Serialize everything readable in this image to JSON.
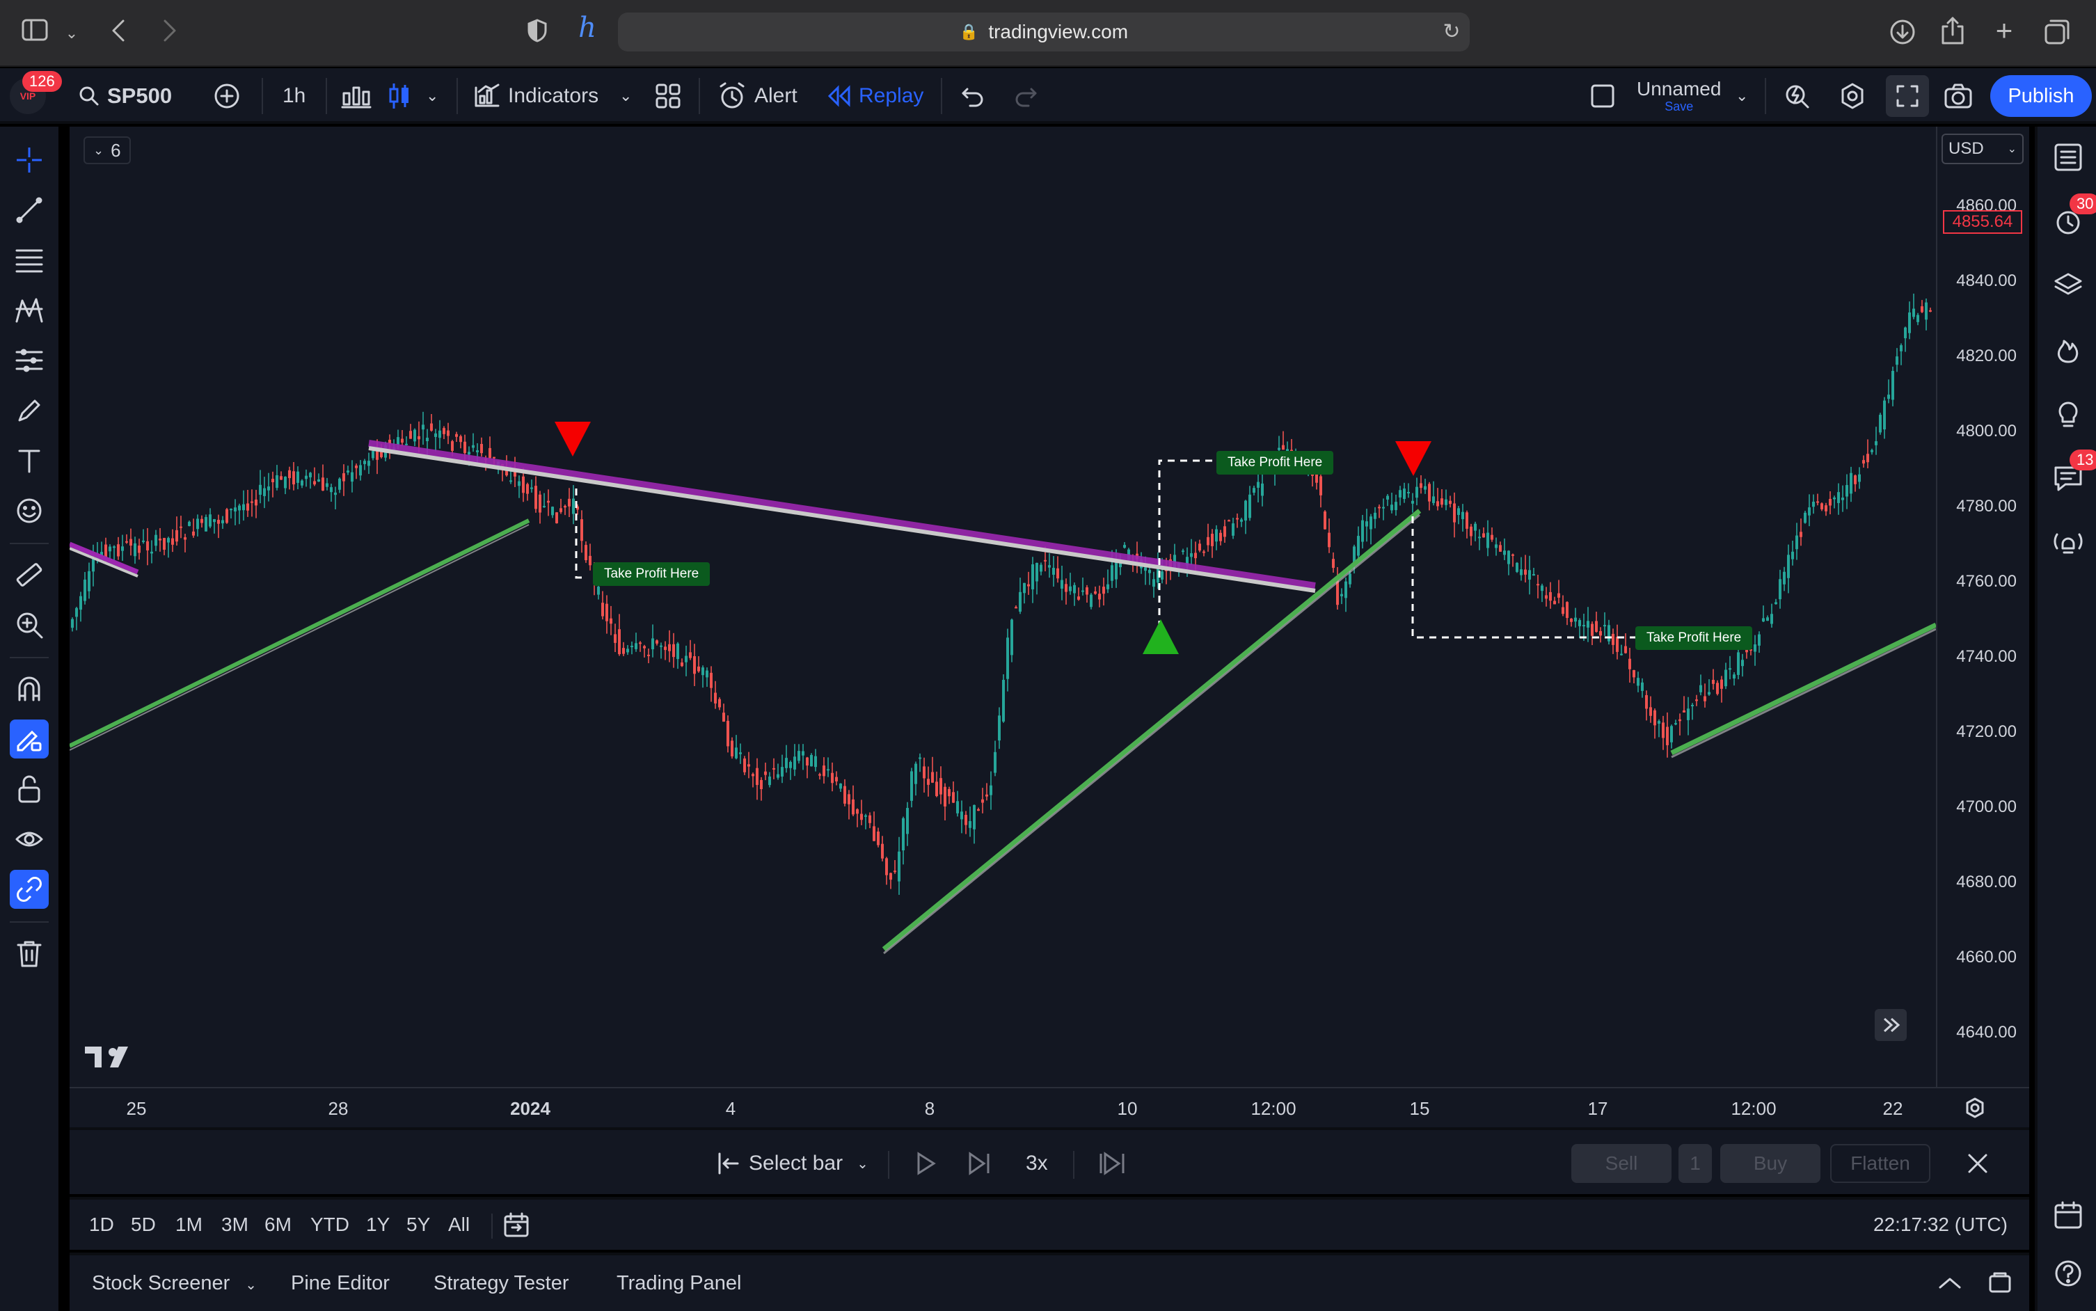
{
  "browser": {
    "url": "tradingview.com",
    "icons": [
      "sidebar-icon",
      "chevron-down-icon",
      "back-icon",
      "forward-icon",
      "shield-icon",
      "extension-icon",
      "lock-icon",
      "reload-icon",
      "download-icon",
      "share-icon",
      "new-tab-icon",
      "tabs-icon"
    ]
  },
  "header": {
    "notifications_badge": "126",
    "symbol": "SP500",
    "interval": "1h",
    "indicators_label": "Indicators",
    "alert_label": "Alert",
    "replay_label": "Replay",
    "layout_name": "Unnamed",
    "layout_save": "Save",
    "publish_label": "Publish",
    "accent": "#2962ff"
  },
  "chart": {
    "legend_toggle": "6",
    "currency": "USD",
    "last_price": "4855.64",
    "price_labels": [
      "4860.00",
      "4840.00",
      "4820.00",
      "4800.00",
      "4780.00",
      "4760.00",
      "4740.00",
      "4720.00",
      "4700.00",
      "4680.00",
      "4660.00",
      "4640.00"
    ],
    "time_labels": [
      "25",
      "28",
      "2024",
      "4",
      "8",
      "10",
      "12:00",
      "15",
      "17",
      "12:00",
      "22"
    ],
    "annotations": [
      "Take Profit Here",
      "Take Profit Here",
      "Take Profit Here"
    ],
    "up_color": "#26a69a",
    "down_color": "#ef5350",
    "tv_logo": "TV"
  },
  "right_sidebar": {
    "alerts_badge": "30",
    "chat_badge": "13"
  },
  "replay": {
    "select_bar_label": "Select bar",
    "speed_label": "3x",
    "sell_label": "Sell",
    "qty_label": "1",
    "buy_label": "Buy",
    "flatten_label": "Flatten"
  },
  "range_bar": {
    "ranges": [
      "1D",
      "5D",
      "1M",
      "3M",
      "6M",
      "YTD",
      "1Y",
      "5Y",
      "All"
    ],
    "clock": "22:17:32 (UTC)"
  },
  "bottom_tabs": [
    "Stock Screener",
    "Pine Editor",
    "Strategy Tester",
    "Trading Panel"
  ]
}
